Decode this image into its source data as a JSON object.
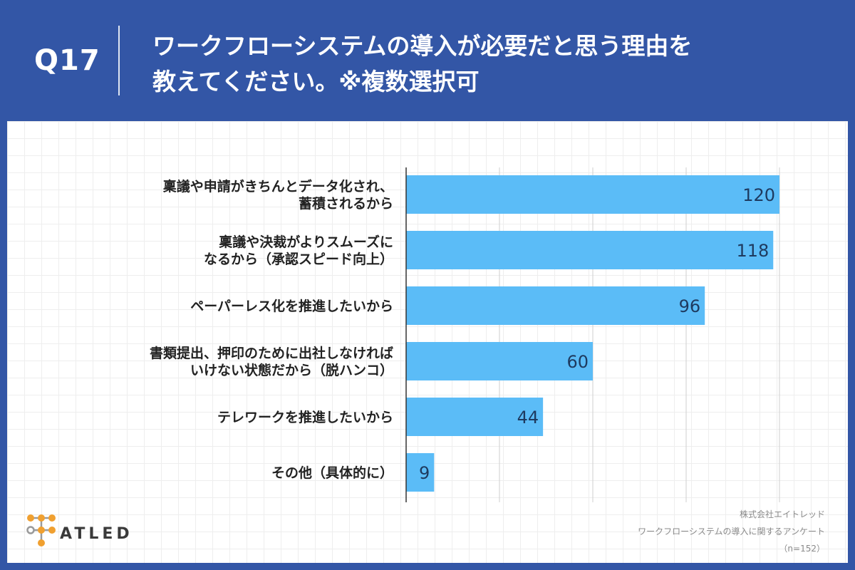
{
  "header": {
    "question_number": "Q17",
    "title_line1": "ワークフローシステムの導入が必要だと思う理由を",
    "title_line2": "教えてください。※複数選択可"
  },
  "colors": {
    "background": "#3356a6",
    "bar": "#5bbcf7",
    "logo_orange": "#f0a030",
    "logo_gray": "#9a9a9a"
  },
  "chart_data": {
    "type": "bar",
    "orientation": "horizontal",
    "categories": [
      [
        "稟議や申請がきちんとデータ化され、",
        "蓄積されるから"
      ],
      [
        "稟議や決裁がよりスムーズに",
        "なるから（承認スピード向上）"
      ],
      [
        "ペーパーレス化を推進したいから"
      ],
      [
        "書類提出、押印のために出社しなければ",
        "いけない状態だから（脱ハンコ）"
      ],
      [
        "テレワークを推進したいから"
      ],
      [
        "その他（具体的に）"
      ]
    ],
    "values": [
      120,
      118,
      96,
      60,
      44,
      9
    ],
    "xlim": [
      0,
      120
    ],
    "grid": true,
    "gridline_step": 30
  },
  "logo": {
    "text": "ATLED",
    "icon": "atled-node-network-icon"
  },
  "credit": {
    "company": "株式会社エイトレッド",
    "survey": "ワークフローシステムの導入に関するアンケート",
    "sample": "（n=152）"
  }
}
